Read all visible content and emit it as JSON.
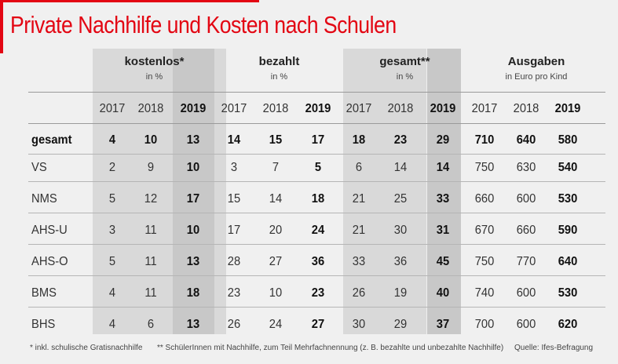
{
  "title": "Private Nachhilfe und Kosten nach Schulen",
  "groups": [
    {
      "label": "kostenlos*",
      "unit": "in %"
    },
    {
      "label": "bezahlt",
      "unit": "in %"
    },
    {
      "label": "gesamt**",
      "unit": "in %"
    },
    {
      "label": "Ausgaben",
      "unit": "in Euro pro Kind"
    }
  ],
  "years": [
    "2017",
    "2018",
    "2019"
  ],
  "rows": [
    {
      "label": "gesamt",
      "values": [
        "4",
        "10",
        "13",
        "14",
        "15",
        "17",
        "18",
        "23",
        "29",
        "710",
        "640",
        "580"
      ]
    },
    {
      "label": "VS",
      "values": [
        "2",
        "9",
        "10",
        "3",
        "7",
        "5",
        "6",
        "14",
        "14",
        "750",
        "630",
        "540"
      ]
    },
    {
      "label": "NMS",
      "values": [
        "5",
        "12",
        "17",
        "15",
        "14",
        "18",
        "21",
        "25",
        "33",
        "660",
        "600",
        "530"
      ]
    },
    {
      "label": "AHS-U",
      "values": [
        "3",
        "11",
        "10",
        "17",
        "20",
        "24",
        "21",
        "30",
        "31",
        "670",
        "660",
        "590"
      ]
    },
    {
      "label": "AHS-O",
      "values": [
        "5",
        "11",
        "13",
        "28",
        "27",
        "36",
        "33",
        "36",
        "45",
        "750",
        "770",
        "640"
      ]
    },
    {
      "label": "BMS",
      "values": [
        "4",
        "11",
        "18",
        "23",
        "10",
        "23",
        "26",
        "19",
        "40",
        "740",
        "600",
        "530"
      ]
    },
    {
      "label": "BHS",
      "values": [
        "4",
        "6",
        "13",
        "26",
        "24",
        "27",
        "30",
        "29",
        "37",
        "700",
        "600",
        "620"
      ]
    }
  ],
  "footnotes": {
    "note1": "* inkl. schulische Gratisnachhilfe",
    "note2": "** SchülerInnen mit Nachhilfe, zum Teil Mehrfachnennung (z. B. bezahlte und unbezahlte Nachhilfe)",
    "source": "Quelle: Ifes-Befragung"
  },
  "colors": {
    "accent": "#e30613",
    "background": "#f0f0f0",
    "shade": "#d9d9d9",
    "shade_dark": "#c8c8c8"
  }
}
